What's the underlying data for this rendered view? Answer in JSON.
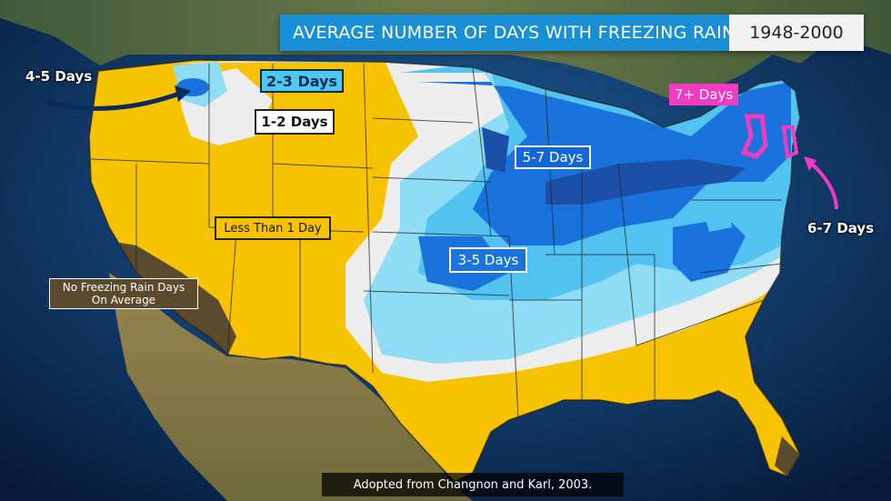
{
  "title": "AVERAGE NUMBER OF DAYS WITH FREEZING RAIN",
  "years": "1948-2000",
  "source": "Adopted from Changnon and Karl, 2003.",
  "legend_labels": {
    "four_five": "4-5 Days",
    "two_three": "2-3 Days",
    "one_two": "1-2 Days",
    "seven_plus": "7+ Days",
    "five_seven": "5-7 Days",
    "less_than_one": "Less Than 1 Day",
    "three_five": "3-5 Days",
    "six_seven": "6-7 Days",
    "none_line1": "No Freezing Rain Days",
    "none_line2": "On Average"
  },
  "zone_colors": {
    "none": "#5b4a2e",
    "less_than_1": "#f7c200",
    "1_2": "#ededed",
    "2_3": "#8fdcf7",
    "3_5": "#52c3f0",
    "5_7": "#1a73dc",
    "5_7_core": "#1c4fa8",
    "7_plus": "#f23ac3",
    "ocean": "#0b2a52",
    "land_outside": "#8b7a4a"
  }
}
